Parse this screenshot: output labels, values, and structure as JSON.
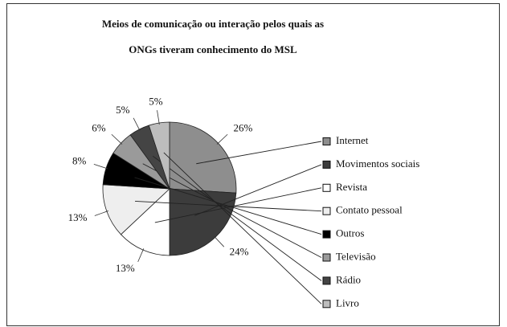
{
  "chart_data": {
    "type": "pie",
    "title": [
      "Meios de comunicação ou interação pelos quais as",
      "ONGs tiveram conhecimento do MSL"
    ],
    "categories": [
      "Internet",
      "Movimentos sociais",
      "Revista",
      "Contato pessoal",
      "Outros",
      "Televisão",
      "Rádio",
      "Livro"
    ],
    "values": [
      26,
      24,
      13,
      13,
      8,
      6,
      5,
      5
    ],
    "value_labels": [
      "26%",
      "24%",
      "13%",
      "13%",
      "8%",
      "6%",
      "5%",
      "5%"
    ],
    "colors": [
      "#8e8e8e",
      "#3c3c3c",
      "#ffffff",
      "#eeeeee",
      "#000000",
      "#9a9a9a",
      "#444444",
      "#bdbdbd"
    ],
    "legend": "right"
  }
}
